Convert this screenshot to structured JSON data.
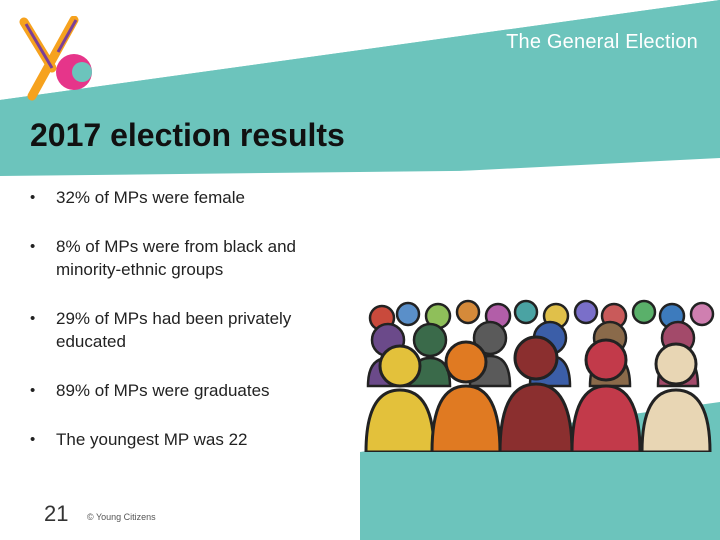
{
  "header": {
    "deck_title": "The General Election"
  },
  "slide": {
    "title": "2017 election results",
    "bullets": [
      "32% of MPs were female",
      "8% of MPs were from black and minority-ethnic groups",
      "29% of MPs had been privately educated",
      "89% of MPs were graduates",
      "The youngest MP was 22"
    ]
  },
  "footer": {
    "page_number": "21",
    "copyright": "© Young Citizens"
  },
  "logo": {
    "text": "yc"
  },
  "colors": {
    "teal": "#6cc4bc",
    "logo_orange": "#f6a21e",
    "logo_pink": "#e6358a",
    "logo_purple": "#7b3f96"
  },
  "icons": {
    "bullet": "bullet-dot-icon",
    "logo": "young-citizens-logo-icon",
    "crowd": "crowd-illustration-icon"
  }
}
